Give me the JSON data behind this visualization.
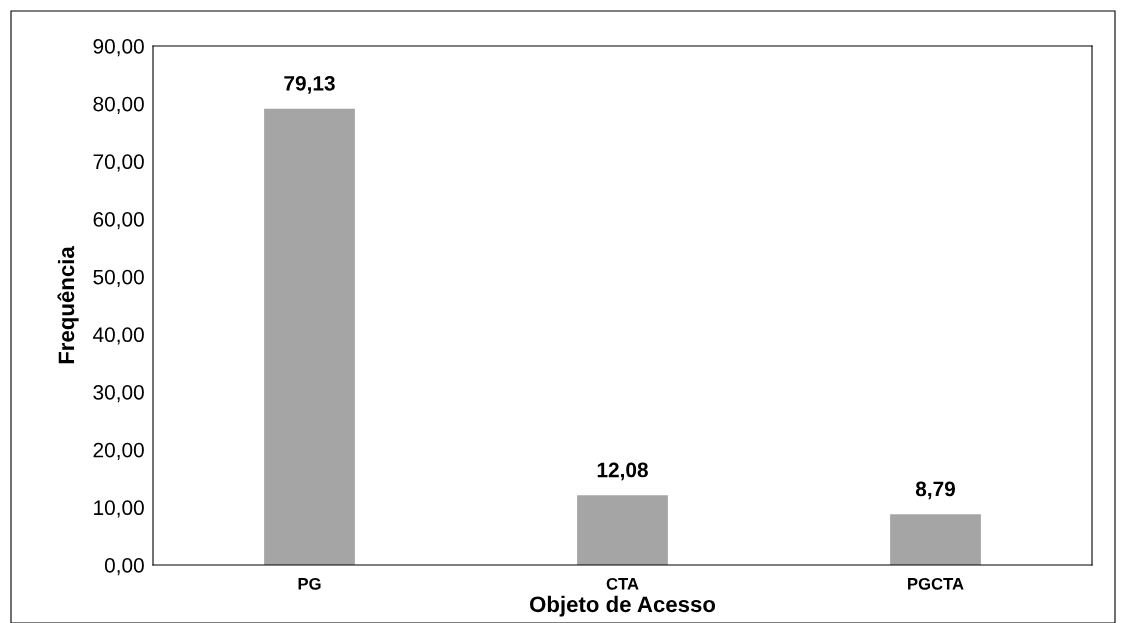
{
  "chart_data": {
    "type": "bar",
    "xlabel": "Objeto de Acesso",
    "ylabel": "Frequência",
    "categories": [
      "PG",
      "CTA",
      "PGCTA"
    ],
    "values": [
      79.13,
      12.08,
      8.79
    ],
    "value_labels": [
      "79,13",
      "12,08",
      "8,79"
    ],
    "color": "#a5a5a5",
    "ylim": [
      0,
      90
    ],
    "yticks": [
      {
        "value": 0,
        "label": "0,00"
      },
      {
        "value": 10,
        "label": "10,00"
      },
      {
        "value": 20,
        "label": "20,00"
      },
      {
        "value": 30,
        "label": "30,00"
      },
      {
        "value": 40,
        "label": "40,00"
      },
      {
        "value": 50,
        "label": "50,00"
      },
      {
        "value": 60,
        "label": "60,00"
      },
      {
        "value": 70,
        "label": "70,00"
      },
      {
        "value": 80,
        "label": "80,00"
      },
      {
        "value": 90,
        "label": "90,00"
      }
    ],
    "grid": false,
    "legend": false
  }
}
